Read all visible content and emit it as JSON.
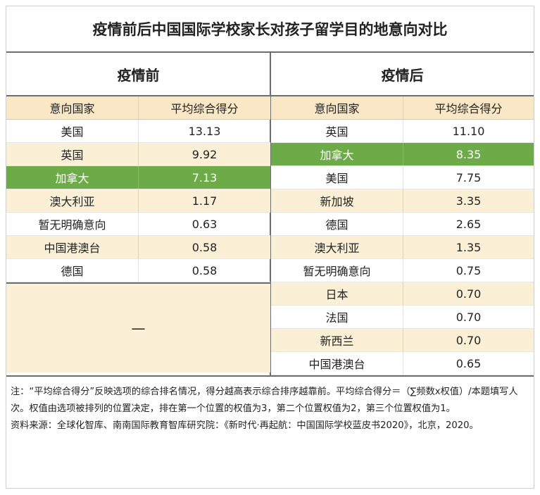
{
  "title": "疫情前后中国国际学校家长对孩子留学目的地意向对比",
  "before": {
    "heading": "疫情前",
    "col_country": "意向国家",
    "col_score": "平均综合得分",
    "rows": [
      {
        "country": "美国",
        "score": "13.13"
      },
      {
        "country": "英国",
        "score": "9.92"
      },
      {
        "country": "加拿大",
        "score": "7.13"
      },
      {
        "country": "澳大利亚",
        "score": "1.17"
      },
      {
        "country": "暂无明确意向",
        "score": "0.63"
      },
      {
        "country": "中国港澳台",
        "score": "0.58"
      },
      {
        "country": "德国",
        "score": "0.58"
      }
    ],
    "empty_mark": "—"
  },
  "after": {
    "heading": "疫情后",
    "col_country": "意向国家",
    "col_score": "平均综合得分",
    "rows": [
      {
        "country": "英国",
        "score": "11.10"
      },
      {
        "country": "加拿大",
        "score": "8.35"
      },
      {
        "country": "美国",
        "score": "7.75"
      },
      {
        "country": "新加坡",
        "score": "3.35"
      },
      {
        "country": "德国",
        "score": "2.65"
      },
      {
        "country": "澳大利亚",
        "score": "1.35"
      },
      {
        "country": "暂无明确意向",
        "score": "0.75"
      },
      {
        "country": "日本",
        "score": "0.70"
      },
      {
        "country": "法国",
        "score": "0.70"
      },
      {
        "country": "新西兰",
        "score": "0.70"
      },
      {
        "country": "中国港澳台",
        "score": "0.65"
      }
    ]
  },
  "note": "注：“平均综合得分”反映选项的综合排名情况，得分越高表示综合排序越靠前。平均综合得分＝（∑频数x权值）/本题填写人次。权值由选项被排列的位置决定，排在第一个位置的权值为3，第二个位置权值为2，第三个位置权值为1。",
  "source": "资料来源：全球化智库、南南国际教育智库研究院：《新时代·再起航：中国国际学校蓝皮书2020》，北京，2020。",
  "colors": {
    "highlight": "#6cab47",
    "header_bg": "#f9e7c6",
    "alt_bg": "#fbefd6"
  }
}
